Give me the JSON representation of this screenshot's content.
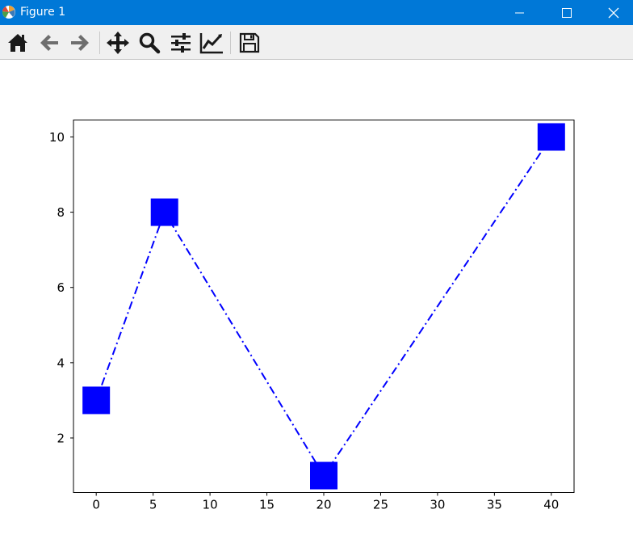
{
  "window": {
    "title": "Figure 1",
    "controls": [
      "minimize",
      "maximize",
      "close"
    ]
  },
  "toolbar": {
    "buttons": [
      {
        "name": "home-button",
        "icon": "home-icon"
      },
      {
        "name": "back-button",
        "icon": "arrow-left-icon"
      },
      {
        "name": "forward-button",
        "icon": "arrow-right-icon"
      },
      {
        "name": "pan-button",
        "icon": "move-icon"
      },
      {
        "name": "zoom-button",
        "icon": "magnifier-icon"
      },
      {
        "name": "configure-subplots-button",
        "icon": "sliders-icon"
      },
      {
        "name": "edit-axis-button",
        "icon": "line-chart-icon"
      },
      {
        "name": "save-button",
        "icon": "floppy-disk-icon"
      }
    ]
  },
  "chart_data": {
    "type": "line",
    "title": "",
    "xlabel": "",
    "ylabel": "",
    "x": [
      0,
      6,
      20,
      40
    ],
    "series": [
      {
        "values": [
          3,
          8,
          1,
          10
        ],
        "color": "#0000ff",
        "line_style": "dash-dot",
        "marker": "square"
      }
    ],
    "xlim": [
      -2,
      42
    ],
    "ylim": [
      0.55,
      10.45
    ],
    "xticks": [
      0,
      5,
      10,
      15,
      20,
      25,
      30,
      35,
      40
    ],
    "yticks": [
      2,
      4,
      6,
      8,
      10
    ],
    "grid": false
  }
}
